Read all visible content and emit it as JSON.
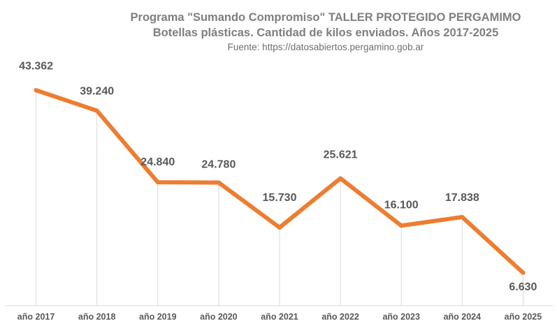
{
  "chart_data": {
    "type": "line",
    "title": "Programa \"Sumando Compromiso\" TALLER PROTEGIDO PERGAMIMO",
    "subtitle": "Botellas plásticas. Cantidad de kilos enviados. Años 2017-2025",
    "source": "Fuente: https://datosabiertos.pergamino.gob.ar",
    "categories": [
      "año 2017",
      "año 2018",
      "año 2019",
      "año 2020",
      "año 2021",
      "año 2022",
      "año 2023",
      "año 2024",
      "año 2025"
    ],
    "values": [
      43362,
      39240,
      24840,
      24780,
      15730,
      25621,
      16100,
      17838,
      6630
    ],
    "value_labels": [
      "43.362",
      "39.240",
      "24.840",
      "24.780",
      "15.730",
      "25.621",
      "16.100",
      "17.838",
      "6.630"
    ],
    "ylim": [
      0,
      50000
    ],
    "line_color": "#ED7D31",
    "grid": "vertical",
    "xlabel": "",
    "ylabel": ""
  }
}
